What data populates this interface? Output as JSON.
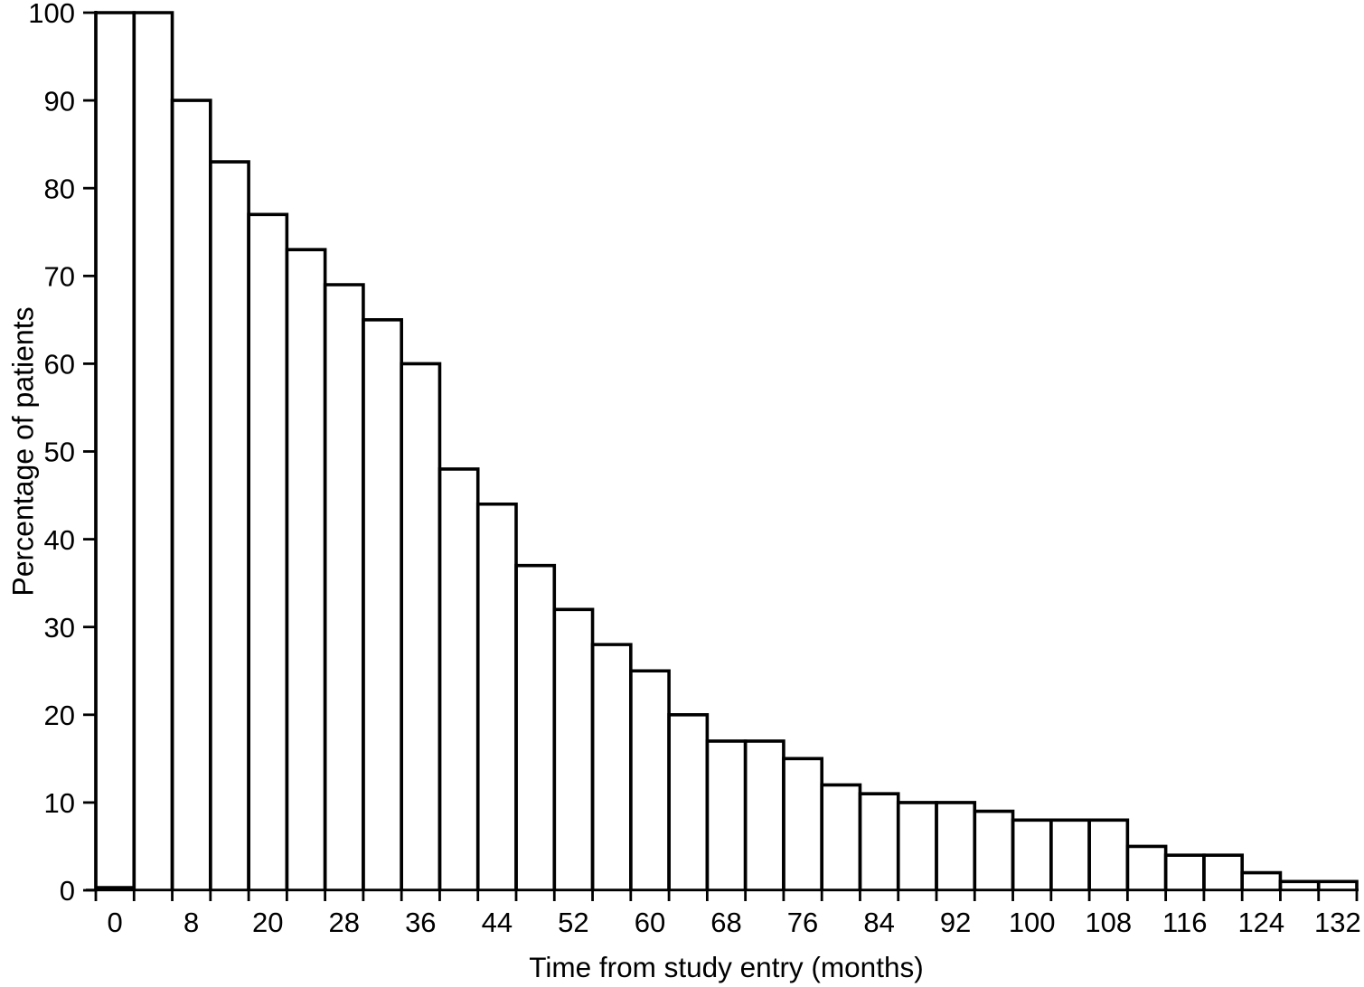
{
  "figure": {
    "background_color": "#ffffff",
    "line_color": "#000000"
  },
  "chart_data": {
    "type": "bar",
    "subtype": "survival-histogram",
    "title": "",
    "xlabel": "Time from study entry (months)",
    "ylabel": "Percentage of patients",
    "ylim": [
      0,
      100
    ],
    "y_tick_step": 10,
    "y_tick_labels": [
      "0",
      "10",
      "20",
      "30",
      "40",
      "50",
      "60",
      "70",
      "80",
      "90",
      "100"
    ],
    "x_tick_labels": [
      "0",
      "8",
      "20",
      "28",
      "36",
      "44",
      "52",
      "60",
      "68",
      "76",
      "84",
      "92",
      "100",
      "108",
      "116",
      "124",
      "132"
    ],
    "x_tick_label_placement": "centered under every other bar, starting with the first bar",
    "bar_fill": "none",
    "bar_outline": "#000000",
    "grid": false,
    "legend": false,
    "bars_percent": [
      100,
      100,
      90,
      83,
      77,
      73,
      69,
      65,
      60,
      48,
      44,
      37,
      32,
      28,
      25,
      20,
      17,
      17,
      15,
      12,
      11,
      10,
      10,
      9,
      8,
      8,
      8,
      5,
      4,
      4,
      2,
      1,
      1
    ]
  }
}
